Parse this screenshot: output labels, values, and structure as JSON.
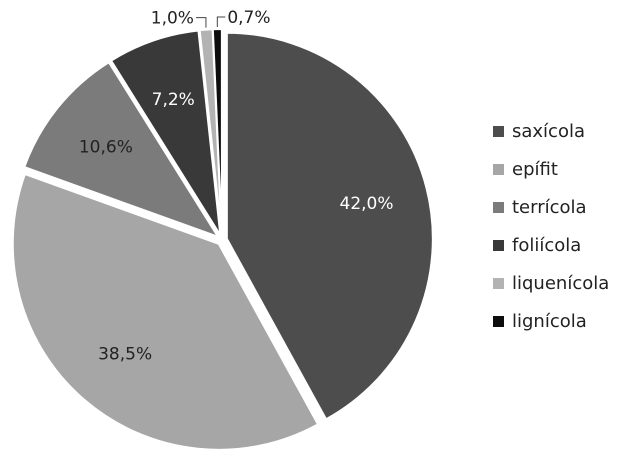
{
  "chart_data": {
    "type": "pie",
    "title": "",
    "legend_position": "right",
    "slices": [
      {
        "label": "saxícola",
        "value": 42.0,
        "display": "42,0%",
        "color": "#4d4d4d",
        "label_color": "#ffffff"
      },
      {
        "label": "epífit",
        "value": 38.5,
        "display": "38,5%",
        "color": "#a6a6a6",
        "label_color": "#222222"
      },
      {
        "label": "terrícola",
        "value": 10.6,
        "display": "10,6%",
        "color": "#7b7b7b",
        "label_color": "#222222"
      },
      {
        "label": "foliícola",
        "value": 7.2,
        "display": "7,2%",
        "color": "#393939",
        "label_color": "#ffffff"
      },
      {
        "label": "liquenícola",
        "value": 1.0,
        "display": "1,0%",
        "color": "#b3b3b3",
        "label_color": "#222222"
      },
      {
        "label": "lignícola",
        "value": 0.7,
        "display": "0,7%",
        "color": "#0d0d0d",
        "label_color": "#222222"
      }
    ]
  }
}
